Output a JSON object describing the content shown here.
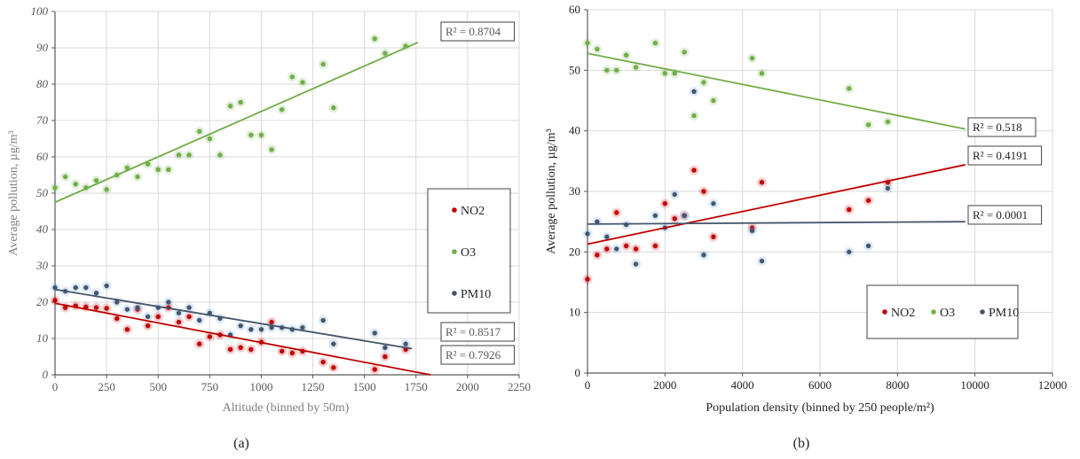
{
  "colors": {
    "NO2": "#c00000",
    "O3": "#70ad47",
    "PM10": "#44546a"
  },
  "chart_data": [
    {
      "type": "scatter",
      "caption": "(a)",
      "xlabel": "Altitude (binned by 50m)",
      "ylabel": "Average pollution, µg/m³",
      "xlim": [
        0,
        2250
      ],
      "ylim": [
        0,
        100
      ],
      "xticks": [
        0,
        250,
        500,
        750,
        1000,
        1250,
        1500,
        1750,
        2000,
        2250
      ],
      "yticks": [
        0,
        10,
        20,
        30,
        40,
        50,
        60,
        70,
        80,
        90,
        100
      ],
      "grid": true,
      "legend_position": "right",
      "series": [
        {
          "name": "NO2",
          "color": "#c00000",
          "points": [
            [
              0,
              20.5
            ],
            [
              50,
              18.5
            ],
            [
              100,
              19
            ],
            [
              150,
              18.7
            ],
            [
              200,
              18.5
            ],
            [
              250,
              18.3
            ],
            [
              300,
              15.5
            ],
            [
              350,
              12.5
            ],
            [
              400,
              18
            ],
            [
              450,
              13.5
            ],
            [
              500,
              16
            ],
            [
              550,
              18.5
            ],
            [
              600,
              14.5
            ],
            [
              650,
              16
            ],
            [
              700,
              8.5
            ],
            [
              750,
              10.5
            ],
            [
              800,
              11
            ],
            [
              850,
              7
            ],
            [
              900,
              7.5
            ],
            [
              950,
              7
            ],
            [
              1000,
              9
            ],
            [
              1050,
              14.5
            ],
            [
              1100,
              6.5
            ],
            [
              1150,
              6
            ],
            [
              1200,
              6.5
            ],
            [
              1300,
              3.5
            ],
            [
              1350,
              2
            ],
            [
              1550,
              1.5
            ],
            [
              1600,
              5
            ],
            [
              1700,
              7
            ]
          ],
          "trend": {
            "x": [
              0,
              1820
            ],
            "y": [
              19.7,
              0
            ],
            "r2_label": "R² = 0.7926"
          }
        },
        {
          "name": "O3",
          "color": "#70ad47",
          "points": [
            [
              0,
              51.5
            ],
            [
              50,
              54.5
            ],
            [
              100,
              52.5
            ],
            [
              150,
              51.5
            ],
            [
              200,
              53.5
            ],
            [
              250,
              51
            ],
            [
              300,
              55
            ],
            [
              350,
              57
            ],
            [
              400,
              54.5
            ],
            [
              450,
              58
            ],
            [
              500,
              56.5
            ],
            [
              550,
              56.5
            ],
            [
              600,
              60.5
            ],
            [
              650,
              60.5
            ],
            [
              700,
              67
            ],
            [
              750,
              65
            ],
            [
              800,
              60.5
            ],
            [
              850,
              74
            ],
            [
              900,
              75
            ],
            [
              950,
              66
            ],
            [
              1000,
              66
            ],
            [
              1050,
              62
            ],
            [
              1100,
              73
            ],
            [
              1150,
              82
            ],
            [
              1200,
              80.5
            ],
            [
              1300,
              85.5
            ],
            [
              1350,
              73.5
            ],
            [
              1550,
              92.5
            ],
            [
              1600,
              88.5
            ],
            [
              1700,
              90.5
            ]
          ],
          "trend": {
            "x": [
              0,
              1760
            ],
            "y": [
              47.5,
              91.5
            ],
            "r2_label": "R² = 0.8704"
          }
        },
        {
          "name": "PM10",
          "color": "#44546a",
          "points": [
            [
              0,
              24
            ],
            [
              50,
              23
            ],
            [
              100,
              24
            ],
            [
              150,
              24
            ],
            [
              200,
              22.5
            ],
            [
              250,
              24.5
            ],
            [
              300,
              20
            ],
            [
              350,
              18
            ],
            [
              400,
              18.5
            ],
            [
              450,
              16
            ],
            [
              500,
              18.5
            ],
            [
              550,
              20
            ],
            [
              600,
              17
            ],
            [
              650,
              18.5
            ],
            [
              700,
              15
            ],
            [
              750,
              17
            ],
            [
              800,
              15.5
            ],
            [
              850,
              11
            ],
            [
              900,
              13.5
            ],
            [
              950,
              12.5
            ],
            [
              1000,
              12.5
            ],
            [
              1050,
              13
            ],
            [
              1100,
              13
            ],
            [
              1150,
              12.5
            ],
            [
              1200,
              13
            ],
            [
              1300,
              15
            ],
            [
              1350,
              8.5
            ],
            [
              1550,
              11.5
            ],
            [
              1600,
              7.5
            ],
            [
              1700,
              8.5
            ]
          ],
          "trend": {
            "x": [
              0,
              1730
            ],
            "y": [
              23.5,
              7.2
            ],
            "r2_label": "R² = 0.8517"
          }
        }
      ]
    },
    {
      "type": "scatter",
      "caption": "(b)",
      "xlabel": "Population density (binned by 250 people/m²)",
      "ylabel": "Average pollution, µg/m³",
      "xlim": [
        0,
        12000
      ],
      "ylim": [
        0,
        60
      ],
      "xticks": [
        0,
        2000,
        4000,
        6000,
        8000,
        10000,
        12000
      ],
      "yticks": [
        0,
        10,
        20,
        30,
        40,
        50,
        60
      ],
      "grid": true,
      "legend_position": "bottom-right",
      "series": [
        {
          "name": "NO2",
          "color": "#c00000",
          "points": [
            [
              0,
              15.5
            ],
            [
              250,
              19.5
            ],
            [
              500,
              20.5
            ],
            [
              750,
              26.5
            ],
            [
              1000,
              21
            ],
            [
              1250,
              20.5
            ],
            [
              1750,
              21
            ],
            [
              2000,
              28
            ],
            [
              2250,
              25.5
            ],
            [
              2500,
              26
            ],
            [
              2750,
              33.5
            ],
            [
              3000,
              30
            ],
            [
              3250,
              22.5
            ],
            [
              4250,
              24
            ],
            [
              4500,
              31.5
            ],
            [
              6750,
              27
            ],
            [
              7250,
              28.5
            ],
            [
              7750,
              31.5
            ]
          ],
          "trend": {
            "x": [
              0,
              9750
            ],
            "y": [
              21.3,
              34.4
            ],
            "r2_label": "R² = 0.4191"
          }
        },
        {
          "name": "O3",
          "color": "#70ad47",
          "points": [
            [
              0,
              54.5
            ],
            [
              250,
              53.5
            ],
            [
              500,
              50
            ],
            [
              750,
              50
            ],
            [
              1000,
              52.5
            ],
            [
              1250,
              50.5
            ],
            [
              1750,
              54.5
            ],
            [
              2000,
              49.5
            ],
            [
              2250,
              49.5
            ],
            [
              2500,
              53
            ],
            [
              2750,
              42.5
            ],
            [
              3000,
              48
            ],
            [
              3250,
              45
            ],
            [
              4250,
              52
            ],
            [
              4500,
              49.5
            ],
            [
              6750,
              47
            ],
            [
              7250,
              41
            ],
            [
              7750,
              41.5
            ]
          ],
          "trend": {
            "x": [
              0,
              9750
            ],
            "y": [
              52.8,
              40.3
            ],
            "r2_label": "R² = 0.518"
          }
        },
        {
          "name": "PM10",
          "color": "#44546a",
          "points": [
            [
              0,
              23
            ],
            [
              250,
              25
            ],
            [
              500,
              22.5
            ],
            [
              750,
              20.5
            ],
            [
              1000,
              24.5
            ],
            [
              1250,
              18
            ],
            [
              1750,
              26
            ],
            [
              2000,
              24
            ],
            [
              2250,
              29.5
            ],
            [
              2500,
              26
            ],
            [
              2750,
              46.5
            ],
            [
              3000,
              19.5
            ],
            [
              3250,
              28
            ],
            [
              4250,
              23.5
            ],
            [
              4500,
              18.5
            ],
            [
              6750,
              20
            ],
            [
              7250,
              21
            ],
            [
              7750,
              30.5
            ]
          ],
          "trend": {
            "x": [
              0,
              9750
            ],
            "y": [
              24.6,
              25.0
            ],
            "r2_label": "R² = 0.0001"
          }
        }
      ]
    }
  ]
}
